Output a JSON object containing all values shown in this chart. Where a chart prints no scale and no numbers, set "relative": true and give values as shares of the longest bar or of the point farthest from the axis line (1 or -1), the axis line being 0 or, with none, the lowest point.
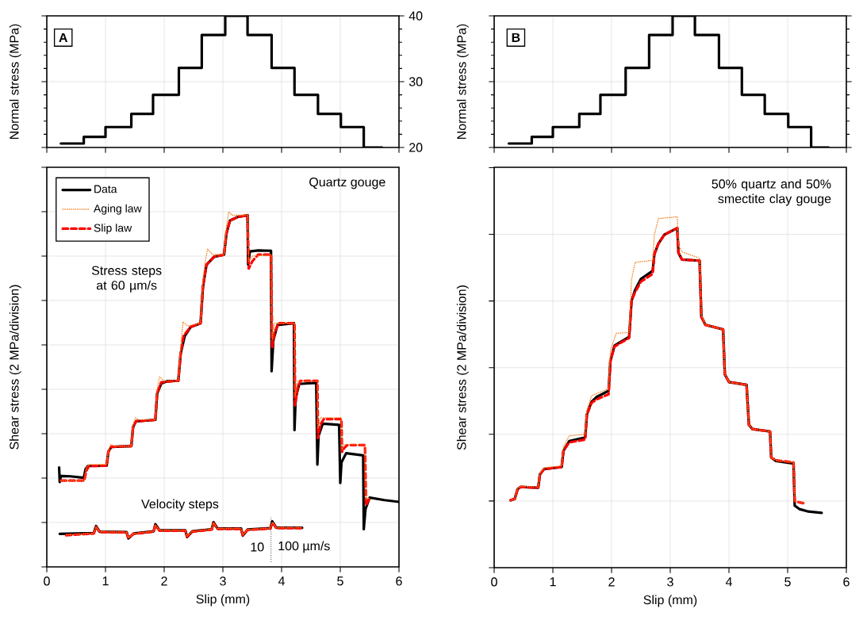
{
  "chart_data": [
    {
      "type": "step",
      "ylabel": "Normal stress (MPa)",
      "xlim": [
        0,
        6
      ],
      "xticks": [
        0,
        1,
        2,
        3,
        4,
        5,
        6
      ],
      "ylim": [
        20,
        40
      ],
      "yticks": [
        20,
        30,
        40
      ],
      "tick_labels": "y",
      "grid": true,
      "annotations": [
        "A"
      ],
      "series": [
        {
          "color": "#000000",
          "x": [
            0.24,
            0.63,
            1.0,
            1.44,
            1.81,
            2.25,
            2.64,
            3.04,
            3.42,
            3.83,
            4.22,
            4.62,
            5.01,
            5.4,
            5.71
          ],
          "values": [
            20.6,
            21.6,
            23.1,
            25.1,
            28.0,
            32.1,
            37.1,
            40,
            37.1,
            32.1,
            28.0,
            25.1,
            23.1,
            20,
            20
          ]
        }
      ]
    },
    {
      "type": "step",
      "ylabel": "Normal stress (MPa)",
      "xlim": [
        0,
        6
      ],
      "xticks": [
        0,
        1,
        2,
        3,
        4,
        5,
        6
      ],
      "ylim": [
        20,
        40
      ],
      "yticks": [
        20,
        30,
        40
      ],
      "tick_labels": false,
      "grid": true,
      "annotations": [
        "B"
      ],
      "series": [
        {
          "color": "#000000",
          "x": [
            0.25,
            0.64,
            1.0,
            1.45,
            1.81,
            2.24,
            2.64,
            3.04,
            3.42,
            3.83,
            4.22,
            4.61,
            5.01,
            5.4,
            5.7
          ],
          "values": [
            20.6,
            21.6,
            23.1,
            25.1,
            28.0,
            32.1,
            37.1,
            40,
            37.1,
            32.1,
            28.0,
            25.1,
            23.1,
            20,
            20
          ]
        }
      ]
    },
    {
      "type": "line",
      "relative": true,
      "xlabel": "Slip (mm)",
      "ylabel": "Shear stress (2 MPa/division)",
      "xlim": [
        0,
        6
      ],
      "xticks": [
        0,
        1,
        2,
        3,
        4,
        5,
        6
      ],
      "tick_labels": "x",
      "grid": true,
      "legend": "top left",
      "annotations": [
        "Quartz gouge",
        "Stress steps at 60 µm/s",
        "Velocity steps",
        "10",
        "100 µm/s"
      ],
      "ref_lines": [
        {
          "axis": "x",
          "value": 3.82,
          "line_style": "dotted"
        }
      ],
      "series": [
        {
          "name": "Data",
          "color": "#000000",
          "line_style": "solid",
          "x": [
            0.21,
            0.22,
            0.24,
            0.4,
            0.63,
            0.66,
            0.7,
            1.02,
            1.05,
            1.1,
            1.44,
            1.47,
            1.52,
            1.85,
            1.88,
            1.95,
            2.05,
            2.24,
            2.28,
            2.35,
            2.45,
            2.62,
            2.66,
            2.72,
            2.85,
            3.02,
            3.06,
            3.12,
            3.25,
            3.42,
            3.43,
            3.46,
            3.6,
            3.82,
            3.83,
            3.86,
            3.93,
            4.21,
            4.22,
            4.24,
            4.3,
            4.59,
            4.61,
            4.63,
            4.7,
            4.98,
            5.0,
            5.02,
            5.1,
            5.39,
            5.4,
            5.43,
            5.5,
            5.75,
            6.0
          ],
          "values": [
            0.28,
            0.239,
            0.256,
            0.255,
            0.251,
            0.275,
            0.284,
            0.285,
            0.325,
            0.338,
            0.34,
            0.394,
            0.41,
            0.414,
            0.488,
            0.516,
            0.523,
            0.524,
            0.6,
            0.65,
            0.675,
            0.686,
            0.788,
            0.85,
            0.873,
            0.879,
            0.938,
            0.975,
            0.985,
            0.99,
            0.851,
            0.888,
            0.891,
            0.89,
            0.551,
            0.638,
            0.681,
            0.686,
            0.385,
            0.475,
            0.515,
            0.518,
            0.288,
            0.369,
            0.403,
            0.4,
            0.236,
            0.294,
            0.32,
            0.314,
            0.106,
            0.163,
            0.195,
            0.188,
            0.183
          ]
        },
        {
          "name": "Aging law",
          "color": "#f5821f",
          "line_style": "dotted",
          "x": [
            0.24,
            0.64,
            0.67,
            0.72,
            1.02,
            1.05,
            1.09,
            1.15,
            1.44,
            1.47,
            1.51,
            1.57,
            1.85,
            1.88,
            1.92,
            2.0,
            2.24,
            2.28,
            2.32,
            2.4,
            2.62,
            2.66,
            2.7,
            2.74,
            2.82,
            3.02,
            3.06,
            3.1,
            3.16,
            3.42,
            3.44,
            3.5,
            3.82,
            3.84,
            3.88,
            4.22,
            4.23,
            4.27,
            4.61,
            4.62,
            4.66,
            5.02,
            5.03,
            5.07,
            5.42,
            5.44,
            5.5
          ],
          "values": [
            0.243,
            0.243,
            0.28,
            0.288,
            0.288,
            0.33,
            0.345,
            0.34,
            0.34,
            0.4,
            0.42,
            0.414,
            0.414,
            0.5,
            0.535,
            0.524,
            0.524,
            0.62,
            0.69,
            0.678,
            0.686,
            0.81,
            0.86,
            0.895,
            0.88,
            0.879,
            0.96,
            1.0,
            0.99,
            0.99,
            0.86,
            0.875,
            0.879,
            0.64,
            0.686,
            0.686,
            0.48,
            0.524,
            0.524,
            0.39,
            0.42,
            0.42,
            0.33,
            0.345,
            0.343,
            0.19,
            0.195
          ]
        },
        {
          "name": "Slip law",
          "color": "#ff0000",
          "line_style": "dashed",
          "x": [
            0.24,
            0.64,
            0.67,
            0.72,
            1.02,
            1.05,
            1.1,
            1.44,
            1.47,
            1.52,
            1.85,
            1.88,
            1.95,
            2.24,
            2.28,
            2.33,
            2.45,
            2.62,
            2.66,
            2.72,
            2.85,
            3.02,
            3.06,
            3.12,
            3.25,
            3.42,
            3.44,
            3.5,
            3.6,
            3.82,
            3.84,
            3.88,
            3.95,
            4.22,
            4.23,
            4.27,
            4.32,
            4.61,
            4.62,
            4.66,
            4.72,
            5.02,
            5.03,
            5.07,
            5.12,
            5.42,
            5.44,
            5.47,
            5.5
          ],
          "values": [
            0.243,
            0.243,
            0.27,
            0.284,
            0.285,
            0.325,
            0.338,
            0.34,
            0.394,
            0.41,
            0.414,
            0.49,
            0.52,
            0.524,
            0.6,
            0.65,
            0.676,
            0.686,
            0.79,
            0.85,
            0.873,
            0.879,
            0.94,
            0.975,
            0.985,
            0.99,
            0.84,
            0.86,
            0.879,
            0.879,
            0.616,
            0.66,
            0.686,
            0.686,
            0.455,
            0.5,
            0.524,
            0.524,
            0.363,
            0.4,
            0.416,
            0.416,
            0.324,
            0.335,
            0.343,
            0.343,
            0.173,
            0.185,
            0.193
          ]
        },
        {
          "color": "#000000",
          "line_style": "solid",
          "x": [
            0.22,
            0.8,
            0.84,
            0.9,
            1.36,
            1.39,
            1.48,
            1.82,
            1.85,
            1.92,
            2.36,
            2.39,
            2.48,
            2.81,
            2.84,
            2.91,
            3.31,
            3.34,
            3.42,
            3.81,
            3.84,
            3.91,
            4.35
          ],
          "values": [
            0.093,
            0.095,
            0.115,
            0.099,
            0.098,
            0.08,
            0.094,
            0.1,
            0.12,
            0.103,
            0.103,
            0.084,
            0.1,
            0.106,
            0.126,
            0.108,
            0.108,
            0.088,
            0.105,
            0.109,
            0.128,
            0.11,
            0.11
          ]
        },
        {
          "color": "#f5821f",
          "line_style": "dotted",
          "x": [
            0.33,
            0.8,
            0.84,
            0.9,
            1.36,
            1.39,
            1.48,
            1.82,
            1.85,
            1.92,
            2.36,
            2.39,
            2.48,
            2.81,
            2.84,
            2.91,
            3.31,
            3.34,
            3.42,
            3.81,
            3.84,
            3.91,
            4.35
          ],
          "values": [
            0.09,
            0.095,
            0.113,
            0.099,
            0.098,
            0.082,
            0.094,
            0.1,
            0.118,
            0.103,
            0.103,
            0.086,
            0.1,
            0.106,
            0.124,
            0.108,
            0.108,
            0.09,
            0.105,
            0.109,
            0.126,
            0.11,
            0.11
          ]
        },
        {
          "color": "#ff0000",
          "line_style": "dashed",
          "x": [
            0.33,
            0.8,
            0.84,
            0.9,
            1.36,
            1.39,
            1.48,
            1.82,
            1.85,
            1.92,
            2.36,
            2.39,
            2.48,
            2.81,
            2.84,
            2.91,
            3.31,
            3.34,
            3.42,
            3.81,
            3.84,
            3.91,
            4.35
          ],
          "values": [
            0.089,
            0.094,
            0.112,
            0.098,
            0.097,
            0.081,
            0.093,
            0.099,
            0.117,
            0.102,
            0.102,
            0.085,
            0.099,
            0.105,
            0.123,
            0.107,
            0.107,
            0.089,
            0.104,
            0.108,
            0.125,
            0.109,
            0.109
          ]
        }
      ]
    },
    {
      "type": "line",
      "relative": true,
      "xlabel": "Slip (mm)",
      "ylabel": "Shear stress (2 MPa/division)",
      "xlim": [
        0,
        6
      ],
      "xticks": [
        0,
        1,
        2,
        3,
        4,
        5,
        6
      ],
      "tick_labels": "x",
      "grid": true,
      "annotations": [
        "50% quartz and 50% smectite clay gouge"
      ],
      "series": [
        {
          "color": "#000000",
          "line_style": "solid",
          "x": [
            0.28,
            0.35,
            0.4,
            0.45,
            0.75,
            0.78,
            0.85,
            1.15,
            1.18,
            1.28,
            1.55,
            1.58,
            1.66,
            1.75,
            1.95,
            1.98,
            2.05,
            2.3,
            2.34,
            2.4,
            2.5,
            2.7,
            2.73,
            2.8,
            2.9,
            3.12,
            3.14,
            3.2,
            3.5,
            3.53,
            3.6,
            3.9,
            3.93,
            4.0,
            4.3,
            4.34,
            4.4,
            4.7,
            4.72,
            4.8,
            5.1,
            5.12,
            5.2,
            5.35,
            5.58
          ],
          "values": [
            0.192,
            0.196,
            0.224,
            0.23,
            0.228,
            0.266,
            0.281,
            0.287,
            0.333,
            0.361,
            0.371,
            0.437,
            0.473,
            0.487,
            0.504,
            0.589,
            0.633,
            0.658,
            0.76,
            0.791,
            0.823,
            0.846,
            0.894,
            0.924,
            0.949,
            0.968,
            0.897,
            0.878,
            0.875,
            0.715,
            0.692,
            0.679,
            0.551,
            0.529,
            0.521,
            0.407,
            0.395,
            0.388,
            0.314,
            0.304,
            0.297,
            0.177,
            0.167,
            0.16,
            0.156
          ]
        },
        {
          "color": "#f5821f",
          "line_style": "dotted",
          "x": [
            0.28,
            0.35,
            0.4,
            0.45,
            0.75,
            0.78,
            0.85,
            1.15,
            1.18,
            1.28,
            1.55,
            1.58,
            1.66,
            1.8,
            1.95,
            1.98,
            2.08,
            2.3,
            2.34,
            2.4,
            2.7,
            2.73,
            2.8,
            3.12,
            3.14,
            3.2,
            3.5,
            3.53,
            3.6,
            3.9,
            3.93,
            4.0,
            4.3,
            4.34,
            4.4,
            4.7,
            4.72,
            4.8,
            5.1,
            5.12,
            5.2,
            5.3
          ],
          "values": [
            0.192,
            0.196,
            0.226,
            0.232,
            0.23,
            0.27,
            0.285,
            0.29,
            0.345,
            0.376,
            0.38,
            0.45,
            0.49,
            0.5,
            0.51,
            0.62,
            0.668,
            0.67,
            0.82,
            0.87,
            0.876,
            0.95,
            0.995,
            1.0,
            0.92,
            0.9,
            0.882,
            0.72,
            0.692,
            0.679,
            0.551,
            0.529,
            0.521,
            0.407,
            0.395,
            0.388,
            0.314,
            0.306,
            0.3,
            0.19,
            0.186,
            0.183
          ]
        },
        {
          "color": "#ff0000",
          "line_style": "dashed",
          "x": [
            0.28,
            0.35,
            0.4,
            0.45,
            0.75,
            0.78,
            0.85,
            1.15,
            1.18,
            1.28,
            1.55,
            1.58,
            1.66,
            1.75,
            1.95,
            1.98,
            2.05,
            2.3,
            2.34,
            2.4,
            2.5,
            2.7,
            2.73,
            2.8,
            2.9,
            3.12,
            3.14,
            3.2,
            3.5,
            3.53,
            3.6,
            3.9,
            3.93,
            4.0,
            4.3,
            4.34,
            4.4,
            4.7,
            4.72,
            4.8,
            5.1,
            5.12,
            5.2,
            5.3
          ],
          "values": [
            0.192,
            0.196,
            0.224,
            0.23,
            0.228,
            0.266,
            0.281,
            0.287,
            0.333,
            0.357,
            0.365,
            0.437,
            0.47,
            0.48,
            0.494,
            0.589,
            0.63,
            0.655,
            0.76,
            0.785,
            0.815,
            0.837,
            0.894,
            0.924,
            0.949,
            0.968,
            0.897,
            0.878,
            0.875,
            0.715,
            0.692,
            0.679,
            0.551,
            0.529,
            0.521,
            0.407,
            0.395,
            0.388,
            0.314,
            0.306,
            0.3,
            0.19,
            0.186,
            0.183
          ]
        }
      ]
    }
  ]
}
